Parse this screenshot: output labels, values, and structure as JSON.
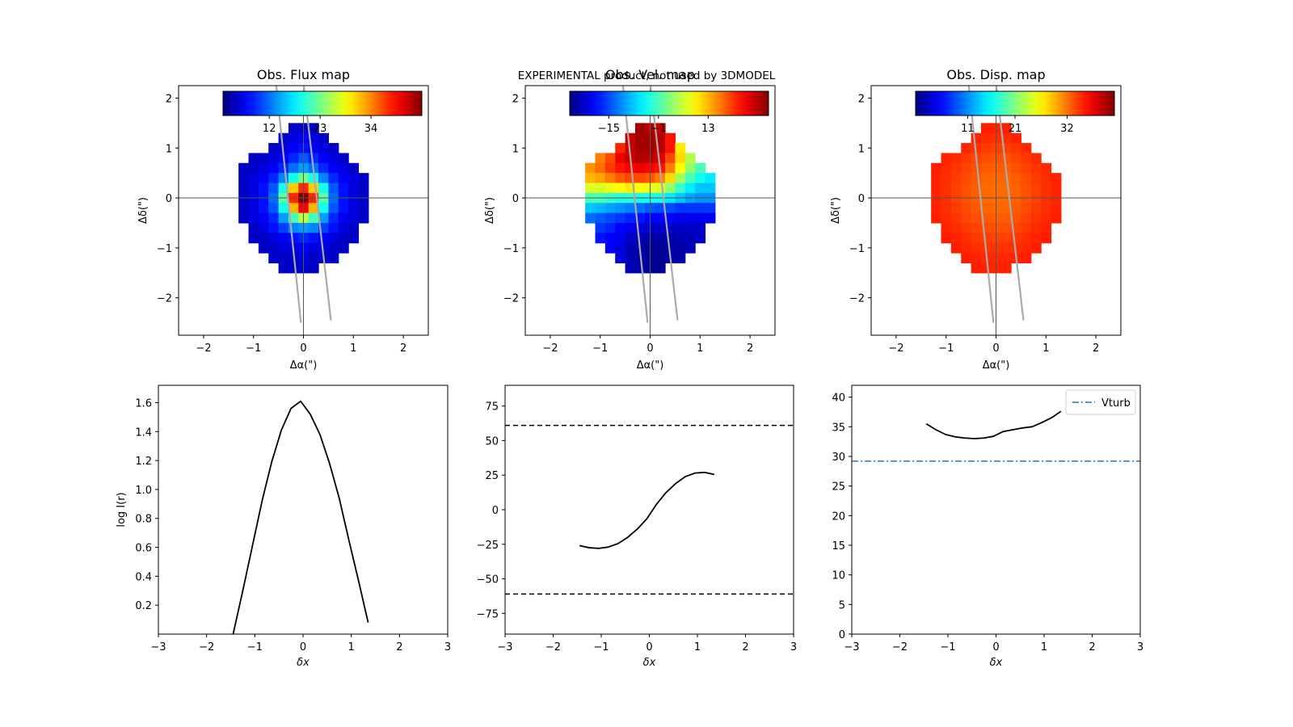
{
  "figure": {
    "banner": "EXPERIMENTAL product, not used by 3DMODEL",
    "banner_color": "#ff0000"
  },
  "chart_data": [
    {
      "type": "heatmap",
      "title": "Obs. Flux map",
      "xlabel": "Δα(\")",
      "ylabel": "Δδ(\")",
      "xlim": [
        -2.5,
        2.5
      ],
      "ylim": [
        -2.75,
        2.25
      ],
      "xticks": [
        -2,
        -1,
        0,
        1,
        2
      ],
      "yticks": [
        -2,
        -1,
        0,
        1,
        2
      ],
      "colormap": "jet",
      "colorbar_ticks": [
        {
          "value": 12,
          "label": "12"
        },
        {
          "value": 23,
          "label": "23"
        },
        {
          "value": 34,
          "label": "34"
        }
      ],
      "colorbar_range": [
        2,
        45
      ],
      "grid_x_centers": [
        -1.2,
        -1.0,
        -0.8,
        -0.6,
        -0.4,
        -0.2,
        0.0,
        0.2,
        0.4,
        0.6,
        0.8,
        1.0,
        1.2
      ],
      "grid_y_centers": [
        1.4,
        1.2,
        1.0,
        0.8,
        0.6,
        0.4,
        0.2,
        0.0,
        -0.2,
        -0.4,
        -0.6,
        -0.8,
        -1.0,
        -1.2,
        -1.4
      ],
      "pixel_size": 0.2,
      "values": [
        [
          null,
          null,
          null,
          null,
          null,
          5,
          5,
          5,
          null,
          null,
          null,
          null,
          null
        ],
        [
          null,
          null,
          null,
          null,
          5,
          6,
          7,
          6,
          5,
          null,
          null,
          null,
          null
        ],
        [
          null,
          null,
          null,
          5,
          6,
          7,
          8,
          7,
          6,
          5,
          null,
          null,
          null
        ],
        [
          null,
          5,
          5,
          6,
          7,
          9,
          11,
          9,
          7,
          6,
          5,
          null,
          null
        ],
        [
          5,
          5,
          6,
          7,
          9,
          12,
          14,
          12,
          9,
          7,
          6,
          5,
          null
        ],
        [
          5,
          6,
          7,
          9,
          13,
          19,
          23,
          19,
          13,
          9,
          7,
          6,
          5
        ],
        [
          5,
          6,
          8,
          11,
          19,
          31,
          38,
          31,
          19,
          11,
          8,
          6,
          5
        ],
        [
          5,
          6,
          8,
          12,
          22,
          38,
          45,
          38,
          22,
          12,
          8,
          6,
          5
        ],
        [
          5,
          6,
          8,
          11,
          19,
          32,
          40,
          32,
          19,
          11,
          8,
          6,
          5
        ],
        [
          5,
          6,
          7,
          9,
          14,
          21,
          26,
          21,
          14,
          9,
          7,
          6,
          5
        ],
        [
          null,
          5,
          6,
          8,
          10,
          13,
          14,
          13,
          10,
          8,
          6,
          5,
          null
        ],
        [
          null,
          5,
          5,
          6,
          7,
          8,
          9,
          8,
          7,
          6,
          5,
          5,
          null
        ],
        [
          null,
          null,
          5,
          5,
          6,
          6,
          7,
          6,
          6,
          5,
          5,
          null,
          null
        ],
        [
          null,
          null,
          null,
          5,
          5,
          5,
          6,
          5,
          5,
          5,
          null,
          null,
          null
        ],
        [
          null,
          null,
          null,
          null,
          5,
          5,
          5,
          5,
          null,
          null,
          null,
          null,
          null
        ]
      ],
      "slit_lines": [
        [
          [
            -0.55,
            2.3
          ],
          [
            -0.05,
            -2.5
          ]
        ],
        [
          [
            0.0,
            2.3
          ],
          [
            0.55,
            -2.45
          ]
        ]
      ]
    },
    {
      "type": "heatmap",
      "title": "Obs. Vel. map",
      "xlabel": "Δα(\")",
      "ylabel": "Δδ(\")",
      "xlim": [
        -2.5,
        2.5
      ],
      "ylim": [
        -2.75,
        2.25
      ],
      "xticks": [
        -2,
        -1,
        0,
        1,
        2
      ],
      "yticks": [
        -2,
        -1,
        0,
        1,
        2
      ],
      "colormap": "jet",
      "colorbar_ticks": [
        {
          "value": -15,
          "label": "−15"
        },
        {
          "value": -1,
          "label": "−1"
        },
        {
          "value": 13,
          "label": "13"
        }
      ],
      "colorbar_range": [
        -26,
        30
      ],
      "grid_x_centers": [
        -1.2,
        -1.0,
        -0.8,
        -0.6,
        -0.4,
        -0.2,
        0.0,
        0.2,
        0.4,
        0.6,
        0.8,
        1.0,
        1.2
      ],
      "grid_y_centers": [
        1.4,
        1.2,
        1.0,
        0.8,
        0.6,
        0.4,
        0.2,
        0.0,
        -0.2,
        -0.4,
        -0.6,
        -0.8,
        -1.0,
        -1.2,
        -1.4
      ],
      "pixel_size": 0.2,
      "values": [
        [
          null,
          null,
          null,
          null,
          null,
          28,
          27,
          26,
          null,
          null,
          null,
          null,
          null
        ],
        [
          null,
          null,
          null,
          null,
          26,
          28,
          28,
          27,
          22,
          null,
          null,
          null,
          null
        ],
        [
          null,
          null,
          null,
          21,
          26,
          28,
          28,
          27,
          22,
          10,
          null,
          null,
          null
        ],
        [
          null,
          16,
          19,
          24,
          26,
          27,
          27,
          25,
          19,
          11,
          5,
          null,
          null
        ],
        [
          15,
          17,
          20,
          22,
          23,
          24,
          23,
          22,
          16,
          9,
          3,
          -1,
          null
        ],
        [
          13,
          14,
          16,
          18,
          19,
          19,
          18,
          16,
          11,
          4,
          -1,
          -4,
          -6
        ],
        [
          7,
          7,
          8,
          9,
          10,
          9,
          8,
          7,
          3,
          -2,
          -6,
          -8,
          -8
        ],
        [
          -1,
          -1,
          -2,
          -3,
          -3,
          -4,
          -4,
          -4,
          -6,
          -8,
          -10,
          -11,
          -11
        ],
        [
          -8,
          -9,
          -10,
          -11,
          -12,
          -13,
          -14,
          -15,
          -15,
          -16,
          -16,
          -16,
          -16
        ],
        [
          -13,
          -14,
          -15,
          -16,
          -17,
          -18,
          -19,
          -19,
          -19,
          -20,
          -20,
          -20,
          -20
        ],
        [
          null,
          -16,
          -17,
          -19,
          -20,
          -21,
          -22,
          -22,
          -22,
          -22,
          -22,
          -22,
          null
        ],
        [
          null,
          -18,
          -19,
          -20,
          -22,
          -23,
          -24,
          -24,
          -24,
          -23,
          -23,
          -22,
          null
        ],
        [
          null,
          null,
          -19,
          -21,
          -23,
          -24,
          -25,
          -25,
          -24,
          -24,
          -23,
          null,
          null
        ],
        [
          null,
          null,
          null,
          -21,
          -23,
          -24,
          -25,
          -25,
          -24,
          -24,
          null,
          null,
          null
        ],
        [
          null,
          null,
          null,
          null,
          -23,
          -24,
          -25,
          -25,
          null,
          null,
          null,
          null,
          null
        ]
      ],
      "slit_lines": [
        [
          [
            -0.55,
            2.3
          ],
          [
            -0.05,
            -2.5
          ]
        ],
        [
          [
            0.0,
            2.3
          ],
          [
            0.55,
            -2.45
          ]
        ]
      ]
    },
    {
      "type": "heatmap",
      "title": "Obs. Disp. map",
      "xlabel": "Δα(\")",
      "ylabel": "Δδ(\")",
      "xlim": [
        -2.5,
        2.5
      ],
      "ylim": [
        -2.75,
        2.25
      ],
      "xticks": [
        -2,
        -1,
        0,
        1,
        2
      ],
      "yticks": [
        -2,
        -1,
        0,
        1,
        2
      ],
      "colormap": "jet",
      "colorbar_ticks": [
        {
          "value": 11,
          "label": "11"
        },
        {
          "value": 21,
          "label": "21"
        },
        {
          "value": 32,
          "label": "32"
        }
      ],
      "colorbar_range": [
        0,
        42
      ],
      "grid_x_centers": [
        -1.2,
        -1.0,
        -0.8,
        -0.6,
        -0.4,
        -0.2,
        0.0,
        0.2,
        0.4,
        0.6,
        0.8,
        1.0,
        1.2
      ],
      "grid_y_centers": [
        1.4,
        1.2,
        1.0,
        0.8,
        0.6,
        0.4,
        0.2,
        0.0,
        -0.2,
        -0.4,
        -0.6,
        -0.8,
        -1.0,
        -1.2,
        -1.4
      ],
      "pixel_size": 0.2,
      "values": [
        [
          null,
          null,
          null,
          null,
          null,
          35.5,
          35.4,
          35.5,
          null,
          null,
          null,
          null,
          null
        ],
        [
          null,
          null,
          null,
          null,
          35.3,
          35.0,
          34.8,
          34.9,
          35.3,
          null,
          null,
          null,
          null
        ],
        [
          null,
          null,
          null,
          35.2,
          34.8,
          34.4,
          34.1,
          34.2,
          34.6,
          35.2,
          null,
          null,
          null
        ],
        [
          null,
          35.4,
          35.0,
          34.5,
          34.0,
          33.6,
          33.4,
          33.5,
          33.9,
          34.4,
          35.0,
          null,
          null
        ],
        [
          35.5,
          35.1,
          34.6,
          34.0,
          33.5,
          33.1,
          32.9,
          33.0,
          33.4,
          34.0,
          34.6,
          35.1,
          null
        ],
        [
          35.4,
          34.9,
          34.3,
          33.7,
          33.1,
          32.7,
          32.5,
          32.6,
          33.0,
          33.6,
          34.3,
          34.9,
          35.4
        ],
        [
          35.3,
          34.8,
          34.1,
          33.5,
          32.9,
          32.5,
          32.3,
          32.4,
          32.8,
          33.4,
          34.1,
          34.8,
          35.3
        ],
        [
          35.3,
          34.8,
          34.1,
          33.5,
          32.9,
          32.5,
          32.3,
          32.4,
          32.8,
          33.4,
          34.1,
          34.8,
          35.3
        ],
        [
          35.4,
          34.9,
          34.3,
          33.7,
          33.1,
          32.7,
          32.5,
          32.6,
          33.0,
          33.6,
          34.3,
          34.9,
          35.4
        ],
        [
          35.5,
          35.1,
          34.6,
          34.0,
          33.5,
          33.1,
          32.9,
          33.0,
          33.4,
          34.0,
          34.6,
          35.1,
          35.5
        ],
        [
          null,
          35.4,
          35.0,
          34.5,
          34.0,
          33.6,
          33.4,
          33.5,
          33.9,
          34.4,
          35.0,
          35.4,
          null
        ],
        [
          null,
          35.6,
          35.3,
          34.9,
          34.5,
          34.2,
          34.0,
          34.1,
          34.4,
          34.9,
          35.3,
          35.6,
          null
        ],
        [
          null,
          null,
          35.5,
          35.2,
          34.9,
          34.7,
          34.6,
          34.7,
          34.9,
          35.2,
          35.5,
          null,
          null
        ],
        [
          null,
          null,
          null,
          35.5,
          35.3,
          35.1,
          35.0,
          35.1,
          35.3,
          35.5,
          null,
          null,
          null
        ],
        [
          null,
          null,
          null,
          null,
          35.5,
          35.4,
          35.3,
          35.4,
          null,
          null,
          null,
          null,
          null
        ]
      ],
      "slit_lines": [
        [
          [
            -0.55,
            2.3
          ],
          [
            -0.05,
            -2.5
          ]
        ],
        [
          [
            0.0,
            2.3
          ],
          [
            0.55,
            -2.45
          ]
        ]
      ]
    },
    {
      "type": "line",
      "xlabel": "δx",
      "ylabel": "log I(r)",
      "xlim": [
        -3,
        3
      ],
      "ylim": [
        0.0,
        1.72
      ],
      "xticks": [
        -3,
        -2,
        -1,
        0,
        1,
        2,
        3
      ],
      "yticks": [
        {
          "value": 0.2,
          "label": "0.2"
        },
        {
          "value": 0.4,
          "label": "0.4"
        },
        {
          "value": 0.6,
          "label": "0.6"
        },
        {
          "value": 0.8,
          "label": "0.8"
        },
        {
          "value": 1.0,
          "label": "1.0"
        },
        {
          "value": 1.2,
          "label": "1.2"
        },
        {
          "value": 1.4,
          "label": "1.4"
        },
        {
          "value": 1.6,
          "label": "1.6"
        }
      ],
      "series": [
        {
          "color": "#000000",
          "style": "solid",
          "x": [
            -1.45,
            -1.25,
            -1.05,
            -0.85,
            -0.65,
            -0.45,
            -0.25,
            -0.05,
            0.15,
            0.35,
            0.55,
            0.75,
            0.95,
            1.15,
            1.35
          ],
          "y": [
            0.0,
            0.3,
            0.61,
            0.92,
            1.19,
            1.41,
            1.56,
            1.61,
            1.52,
            1.38,
            1.18,
            0.94,
            0.65,
            0.37,
            0.08
          ]
        }
      ]
    },
    {
      "type": "line",
      "xlabel": "δx",
      "ylabel": "",
      "xlim": [
        -3,
        3
      ],
      "ylim": [
        -90,
        90
      ],
      "xticks": [
        -3,
        -2,
        -1,
        0,
        1,
        2,
        3
      ],
      "yticks": [
        {
          "value": -75,
          "label": "−75"
        },
        {
          "value": -50,
          "label": "−50"
        },
        {
          "value": -25,
          "label": "−25"
        },
        {
          "value": 0,
          "label": "0"
        },
        {
          "value": 25,
          "label": "25"
        },
        {
          "value": 50,
          "label": "50"
        },
        {
          "value": 75,
          "label": "75"
        }
      ],
      "hlines": [
        {
          "y": 61,
          "color": "#000000",
          "style": "dashed"
        },
        {
          "y": -61,
          "color": "#000000",
          "style": "dashed"
        }
      ],
      "series": [
        {
          "color": "#000000",
          "style": "solid",
          "x": [
            -1.45,
            -1.25,
            -1.05,
            -0.85,
            -0.65,
            -0.45,
            -0.25,
            -0.05,
            0.15,
            0.35,
            0.55,
            0.75,
            0.95,
            1.15,
            1.35
          ],
          "y": [
            -26,
            -27.5,
            -28,
            -27,
            -24.5,
            -20,
            -14,
            -6.5,
            4,
            12.5,
            19,
            24,
            26.5,
            27,
            25.5
          ]
        }
      ]
    },
    {
      "type": "line",
      "xlabel": "δx",
      "ylabel": "",
      "xlim": [
        -3,
        3
      ],
      "ylim": [
        0,
        42
      ],
      "xticks": [
        -3,
        -2,
        -1,
        0,
        1,
        2,
        3
      ],
      "yticks": [
        {
          "value": 0,
          "label": "0"
        },
        {
          "value": 5,
          "label": "5"
        },
        {
          "value": 10,
          "label": "10"
        },
        {
          "value": 15,
          "label": "15"
        },
        {
          "value": 20,
          "label": "20"
        },
        {
          "value": 25,
          "label": "25"
        },
        {
          "value": 30,
          "label": "30"
        },
        {
          "value": 35,
          "label": "35"
        },
        {
          "value": 40,
          "label": "40"
        }
      ],
      "hlines": [
        {
          "y": 29.2,
          "color": "#1f77b4",
          "style": "dashdot",
          "name": "Vturb"
        }
      ],
      "legend": {
        "position": "top-right",
        "entries": [
          {
            "label": "Vturb",
            "color": "#1f77b4",
            "style": "dashdot"
          }
        ]
      },
      "series": [
        {
          "color": "#000000",
          "style": "solid",
          "x": [
            -1.45,
            -1.25,
            -1.05,
            -0.85,
            -0.65,
            -0.45,
            -0.25,
            -0.05,
            0.15,
            0.35,
            0.55,
            0.75,
            0.95,
            1.15,
            1.35
          ],
          "y": [
            35.5,
            34.5,
            33.7,
            33.3,
            33.1,
            33.0,
            33.1,
            33.4,
            34.2,
            34.5,
            34.8,
            35.0,
            35.7,
            36.5,
            37.6
          ]
        }
      ]
    }
  ]
}
